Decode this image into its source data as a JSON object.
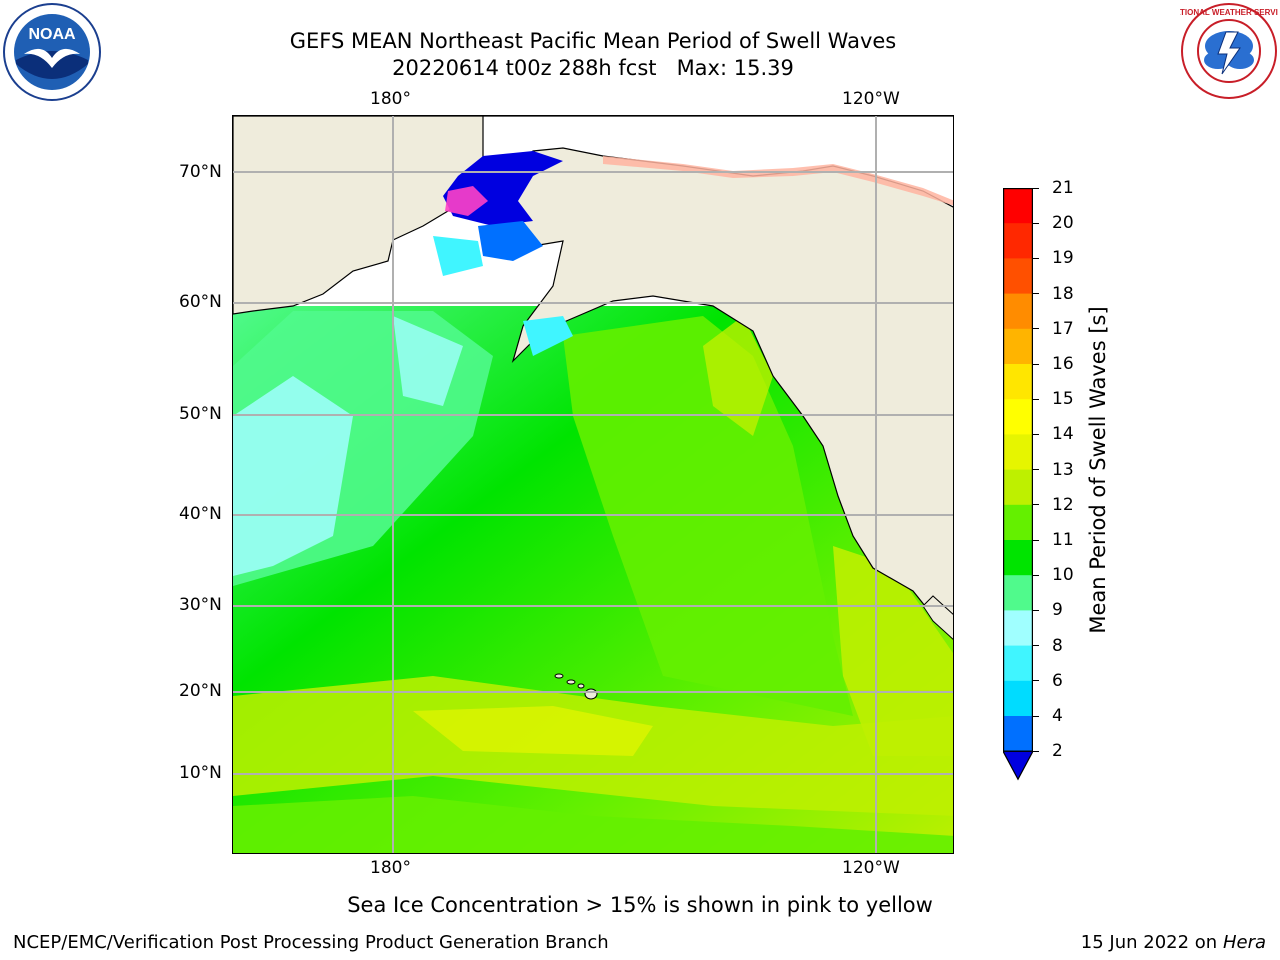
{
  "title": {
    "line1": "GEFS MEAN Northeast Pacific Mean Period of Swell Waves",
    "line2": "20220614 t00z 288h fcst",
    "max_label": "Max: 15.39"
  },
  "logos": {
    "noaa_text": "NOAA",
    "nws_text": "NATIONAL WEATHER SERVICE"
  },
  "map": {
    "lon_labels": [
      "180°",
      "120°W"
    ],
    "lat_labels": [
      "70°N",
      "60°N",
      "50°N",
      "40°N",
      "30°N",
      "20°N",
      "10°N"
    ],
    "land_color": "#efecdc",
    "grid_color": "#b0b0b0"
  },
  "colorbar": {
    "label": "Mean Period of Swell Waves [s]",
    "ticks": [
      "2",
      "4",
      "6",
      "8",
      "9",
      "10",
      "11",
      "12",
      "13",
      "14",
      "15",
      "16",
      "17",
      "18",
      "19",
      "20",
      "21"
    ],
    "colors": [
      "#0000e0",
      "#0070ff",
      "#00dcff",
      "#40f5ff",
      "#a0ffff",
      "#50fa8c",
      "#00e400",
      "#64f000",
      "#bef000",
      "#e6f500",
      "#ffff00",
      "#ffe600",
      "#ffb400",
      "#ff8c00",
      "#ff5000",
      "#ff2800",
      "#ff0000"
    ]
  },
  "chart_data": {
    "type": "heatmap",
    "title": "GEFS MEAN Northeast Pacific Mean Period of Swell Waves",
    "subtitle": "20220614 t00z 288h fcst   Max: 15.39",
    "variable_units": "s",
    "colorbar_label": "Mean Period of Swell Waves [s]",
    "colorbar_levels": [
      2,
      4,
      6,
      8,
      9,
      10,
      11,
      12,
      13,
      14,
      15,
      16,
      17,
      18,
      19,
      20,
      21
    ],
    "x_ticks": [
      "180°",
      "120°W"
    ],
    "y_ticks": [
      "70°N",
      "60°N",
      "50°N",
      "40°N",
      "30°N",
      "20°N",
      "10°N"
    ],
    "max_value": 15.39,
    "grid": true
  },
  "note": "Sea Ice Concentration > 15% is shown in pink to yellow",
  "footer": {
    "left": "NCEP/EMC/Verification Post Processing Product Generation Branch",
    "date": "15 Jun 2022 on",
    "host": "Hera"
  }
}
